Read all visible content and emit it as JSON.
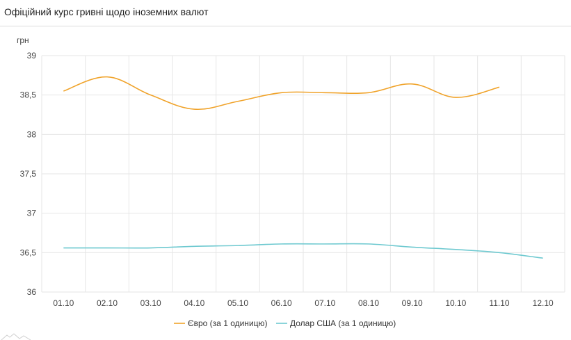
{
  "page": {
    "title": "Офіційний курс гривні щодо іноземних валют"
  },
  "chart_data": {
    "type": "line",
    "ylabel": "грн",
    "categories": [
      "01.10",
      "02.10",
      "03.10",
      "04.10",
      "05.10",
      "06.10",
      "07.10",
      "08.10",
      "09.10",
      "10.10",
      "11.10",
      "12.10"
    ],
    "ylim": [
      36,
      39
    ],
    "yticks": [
      36,
      36.5,
      37,
      37.5,
      38,
      38.5,
      39
    ],
    "ytick_labels": [
      "36",
      "36,5",
      "37",
      "37,5",
      "38",
      "38,5",
      "39"
    ],
    "grid": true,
    "legend_position": "bottom",
    "series": [
      {
        "name": "Євро (за 1 одиницю)",
        "color": "#f0a32a",
        "values": [
          38.55,
          38.73,
          38.5,
          38.32,
          38.42,
          38.53,
          38.53,
          38.53,
          38.64,
          38.47,
          38.6,
          null
        ]
      },
      {
        "name": "Долар США (за 1 одиницю)",
        "color": "#6ec9d0",
        "values": [
          36.56,
          36.56,
          36.56,
          36.58,
          36.59,
          36.61,
          36.61,
          36.61,
          36.57,
          36.54,
          36.5,
          36.43
        ]
      }
    ]
  }
}
